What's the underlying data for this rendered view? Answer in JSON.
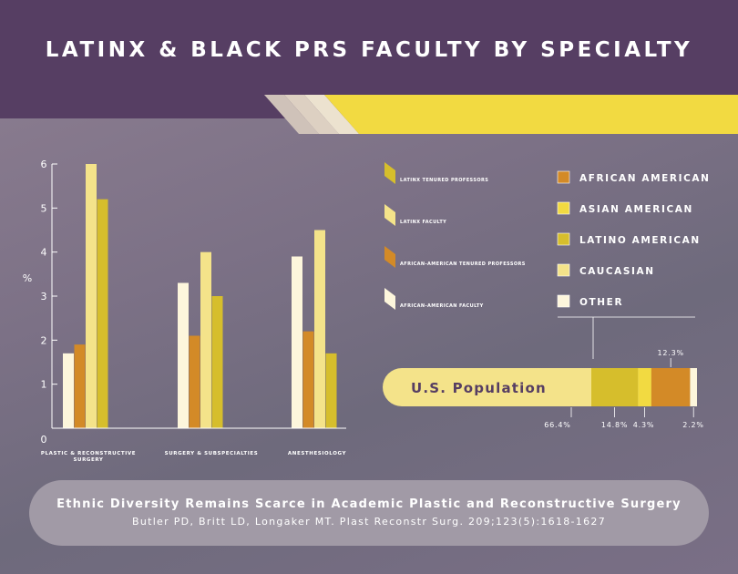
{
  "header": {
    "title": "LATINX & BLACK PRS FACULTY BY SPECIALTY"
  },
  "colors": {
    "latinx_tenured": "#d6be2c",
    "latinx_faculty": "#f4e38a",
    "african_tenured": "#d38a27",
    "african_faculty": "#fdf6dc",
    "accent_yellow": "#f2da41",
    "header_purple": "#563e63"
  },
  "chart_data": [
    {
      "type": "bar",
      "ylabel": "%",
      "ylim": [
        0,
        6
      ],
      "yticks": [
        "0",
        "1",
        "2",
        "3",
        "4",
        "5",
        "6"
      ],
      "categories": [
        "PLASTIC & RECONSTRUCTIVE SURGERY",
        "SURGERY & SUBSPECIALTIES",
        "ANESTHESIOLOGY"
      ],
      "series": [
        {
          "name": "AFRICAN-AMERICAN FACULTY",
          "color": "#fdf6dc",
          "values": [
            1.7,
            3.3,
            3.9
          ]
        },
        {
          "name": "AFRICAN-AMERICAN TENURED PROFESSORS",
          "color": "#d38a27",
          "values": [
            1.9,
            2.1,
            2.2
          ]
        },
        {
          "name": "LATINX FACULTY",
          "color": "#f4e38a",
          "values": [
            6.0,
            4.0,
            4.5
          ]
        },
        {
          "name": "LATINX TENURED PROFESSORS",
          "color": "#d6be2c",
          "values": [
            5.2,
            3.0,
            1.7
          ]
        }
      ],
      "legend": [
        "LATINX TENURED PROFESSORS",
        "LATINX FACULTY",
        "AFRICAN-AMERICAN TENURED PROFESSORS",
        "AFRICAN-AMERICAN FACULTY"
      ]
    },
    {
      "type": "bar",
      "orientation": "stacked-horizontal",
      "label": "U.S. Population",
      "legend": [
        "AFRICAN AMERICAN",
        "ASIAN AMERICAN",
        "LATINO AMERICAN",
        "CAUCASIAN",
        "OTHER"
      ],
      "segments": [
        {
          "name": "CAUCASIAN",
          "value": 66.4,
          "label": "66.4%",
          "color": "#f4e38a"
        },
        {
          "name": "LATINO AMERICAN",
          "value": 14.8,
          "label": "14.8%",
          "color": "#d6be2c"
        },
        {
          "name": "ASIAN AMERICAN",
          "value": 4.3,
          "label": "4.3%",
          "color": "#f2da41"
        },
        {
          "name": "AFRICAN AMERICAN",
          "value": 12.3,
          "label": "12.3%",
          "color": "#d38a27"
        },
        {
          "name": "OTHER",
          "value": 2.2,
          "label": "2.2%",
          "color": "#fdf6dc"
        }
      ]
    }
  ],
  "citation": {
    "title": "Ethnic Diversity Remains Scarce in Academic Plastic and Reconstructive Surgery",
    "reference": "Butler PD, Britt LD, Longaker MT. Plast Reconstr Surg. 209;123(5):1618-1627"
  }
}
